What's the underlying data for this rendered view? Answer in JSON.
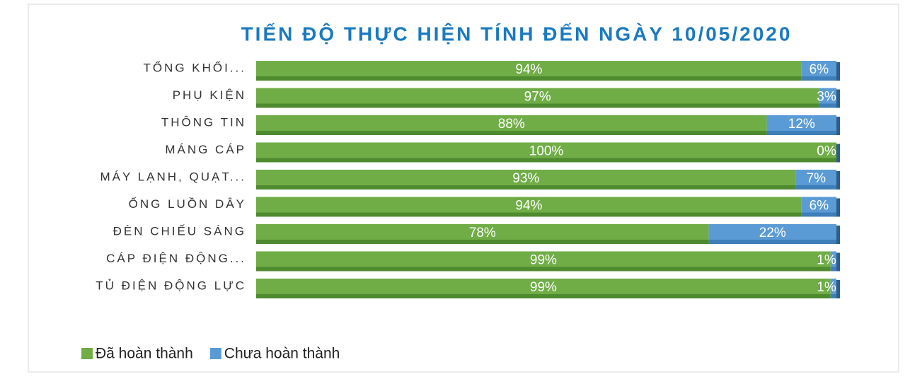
{
  "chart_data": {
    "type": "bar",
    "stacked": true,
    "orientation": "horizontal",
    "title": "TIẾN ĐỘ THỰC HIỆN TÍNH ĐẾN NGÀY 10/05/2020",
    "categories": [
      "TỔNG KHỐI...",
      "PHỤ KIỆN",
      "THÔNG TIN",
      "MÁNG CÁP",
      "MÁY LẠNH, QUẠT...",
      "ỐNG LUỒN DÂY",
      "ĐÈN CHIẾU SÁNG",
      "CÁP ĐIỆN ĐỘNG...",
      "TỦ ĐIỆN ĐỘNG LỰC"
    ],
    "xlim": [
      0,
      100
    ],
    "legend": "bottom-left",
    "series": [
      {
        "name": "Đã hoàn thành",
        "color": "#70ad47",
        "values": [
          94,
          97,
          88,
          100,
          93,
          94,
          78,
          99,
          99
        ],
        "value_labels": [
          "94%",
          "97%",
          "88%",
          "100%",
          "93%",
          "94%",
          "78%",
          "99%",
          "99%"
        ]
      },
      {
        "name": "Chưa hoàn thành",
        "color": "#5b9bd5",
        "values": [
          6,
          3,
          12,
          0,
          7,
          6,
          22,
          1,
          1
        ],
        "value_labels": [
          "6%",
          "3%",
          "12%",
          "0%",
          "7%",
          "6%",
          "22%",
          "1%",
          "1%"
        ]
      }
    ]
  }
}
